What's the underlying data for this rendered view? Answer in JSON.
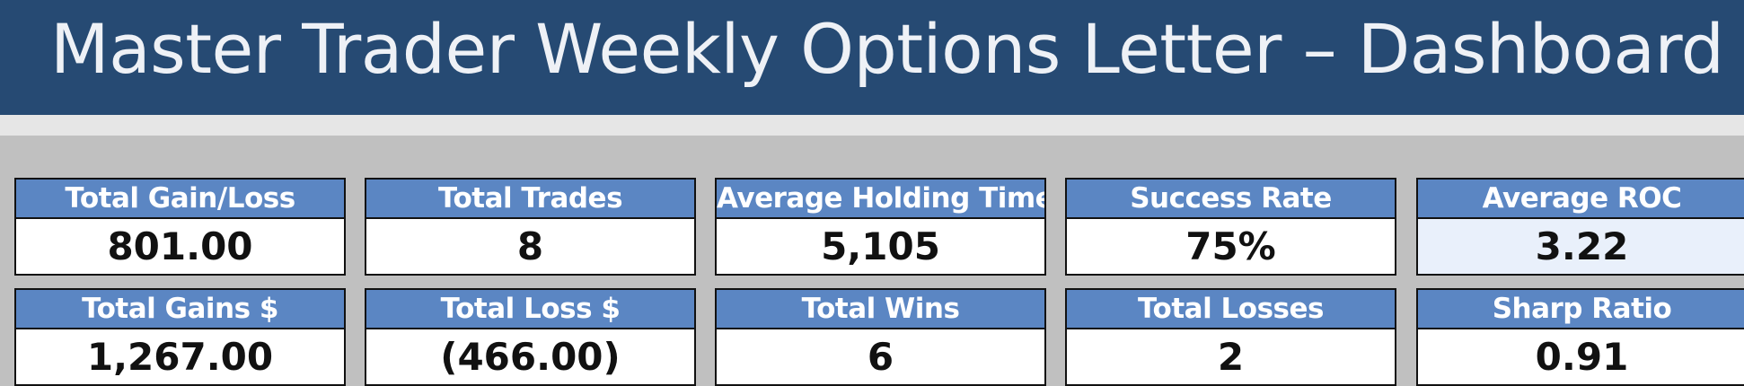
{
  "header": {
    "title": "Master Trader Weekly Options Letter – Dashboard"
  },
  "metrics": [
    [
      {
        "label": "Total Gain/Loss",
        "value": "801.00"
      },
      {
        "label": "Total Trades",
        "value": "8"
      },
      {
        "label": "Average Holding Time",
        "value": "5,105"
      },
      {
        "label": "Success Rate",
        "value": "75%"
      },
      {
        "label": "Average ROC",
        "value": "3.22"
      }
    ],
    [
      {
        "label": "Total Gains $",
        "value": "1,267.00"
      },
      {
        "label": "Total Loss $",
        "value": "(466.00)"
      },
      {
        "label": "Total Wins",
        "value": "6"
      },
      {
        "label": "Total Losses",
        "value": "2"
      },
      {
        "label": "Sharp Ratio",
        "value": "0.91"
      }
    ]
  ]
}
